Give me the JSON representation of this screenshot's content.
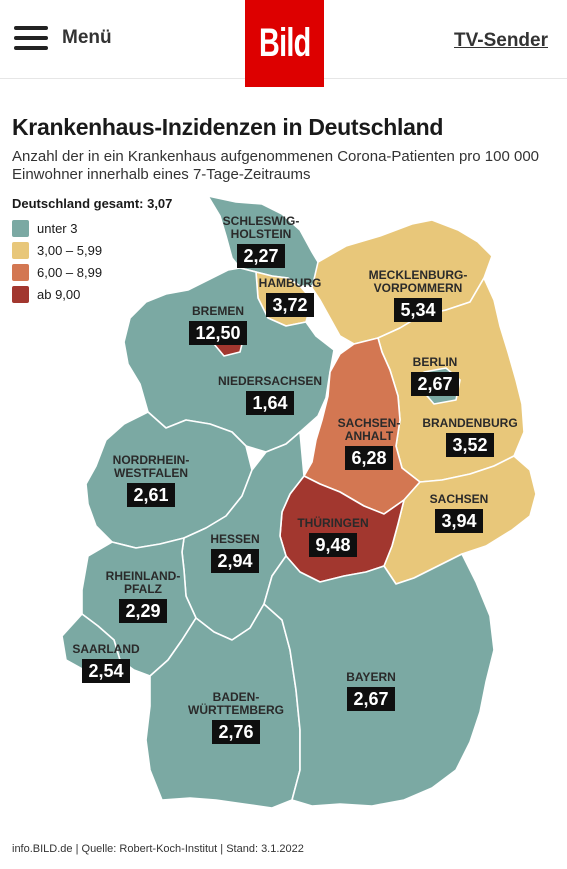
{
  "header": {
    "menu_label": "Menü",
    "logo_text": "Bild",
    "tv_link": "TV-Sender"
  },
  "title": "Krankenhaus-Inzidenzen in Deutschland",
  "subtitle": "Anzahl der in ein Krankenhaus aufgenommenen Corona-Patienten pro 100 000 Einwohner innerhalb eines 7-Tage-Zeitraums",
  "legend": {
    "total_label": "Deutschland gesamt: 3,07",
    "items": [
      {
        "label": "unter 3",
        "color": "#7ba9a3"
      },
      {
        "label": "3,00 – 5,99",
        "color": "#e8c77a"
      },
      {
        "label": "6,00 – 8,99",
        "color": "#d37752"
      },
      {
        "label": "ab 9,00",
        "color": "#a2372f"
      }
    ]
  },
  "states": [
    {
      "id": "sh",
      "name": "SCHLESWIG-HOLSTEIN",
      "name_lines": [
        "SCHLESWIG-",
        "HOLSTEIN"
      ],
      "value": "2,27",
      "category": 0
    },
    {
      "id": "hh",
      "name": "HAMBURG",
      "name_lines": [
        "HAMBURG"
      ],
      "value": "3,72",
      "category": 1
    },
    {
      "id": "mv",
      "name": "MECKLENBURG-VORPOMMERN",
      "name_lines": [
        "MECKLENBURG-",
        "VORPOMMERN"
      ],
      "value": "5,34",
      "category": 1
    },
    {
      "id": "hb",
      "name": "BREMEN",
      "name_lines": [
        "BREMEN"
      ],
      "value": "12,50",
      "category": 3
    },
    {
      "id": "ni",
      "name": "NIEDERSACHSEN",
      "name_lines": [
        "NIEDERSACHSEN"
      ],
      "value": "1,64",
      "category": 0
    },
    {
      "id": "be",
      "name": "BERLIN",
      "name_lines": [
        "BERLIN"
      ],
      "value": "2,67",
      "category": 0
    },
    {
      "id": "st",
      "name": "SACHSEN-ANHALT",
      "name_lines": [
        "SACHSEN-",
        "ANHALT"
      ],
      "value": "6,28",
      "category": 2
    },
    {
      "id": "bb",
      "name": "BRANDENBURG",
      "name_lines": [
        "BRANDENBURG"
      ],
      "value": "3,52",
      "category": 1
    },
    {
      "id": "nw",
      "name": "NORDRHEIN-WESTFALEN",
      "name_lines": [
        "NORDRHEIN-",
        "WESTFALEN"
      ],
      "value": "2,61",
      "category": 0
    },
    {
      "id": "sn",
      "name": "SACHSEN",
      "name_lines": [
        "SACHSEN"
      ],
      "value": "3,94",
      "category": 1
    },
    {
      "id": "th",
      "name": "THÜRINGEN",
      "name_lines": [
        "THÜRINGEN"
      ],
      "value": "9,48",
      "category": 3
    },
    {
      "id": "he",
      "name": "HESSEN",
      "name_lines": [
        "HESSEN"
      ],
      "value": "2,94",
      "category": 0
    },
    {
      "id": "rp",
      "name": "RHEINLAND-PFALZ",
      "name_lines": [
        "RHEINLAND-",
        "PFALZ"
      ],
      "value": "2,29",
      "category": 0
    },
    {
      "id": "sl",
      "name": "SAARLAND",
      "name_lines": [
        "SAARLAND"
      ],
      "value": "2,54",
      "category": 0
    },
    {
      "id": "by",
      "name": "BAYERN",
      "name_lines": [
        "BAYERN"
      ],
      "value": "2,67",
      "category": 0
    },
    {
      "id": "bw",
      "name": "BADEN-WÜRTTEMBERG",
      "name_lines": [
        "BADEN-",
        "WÜRTTEMBERG"
      ],
      "value": "2,76",
      "category": 0
    }
  ],
  "source": "info.BILD.de | Quelle: Robert-Koch-Institut | Stand: 3.1.2022"
}
